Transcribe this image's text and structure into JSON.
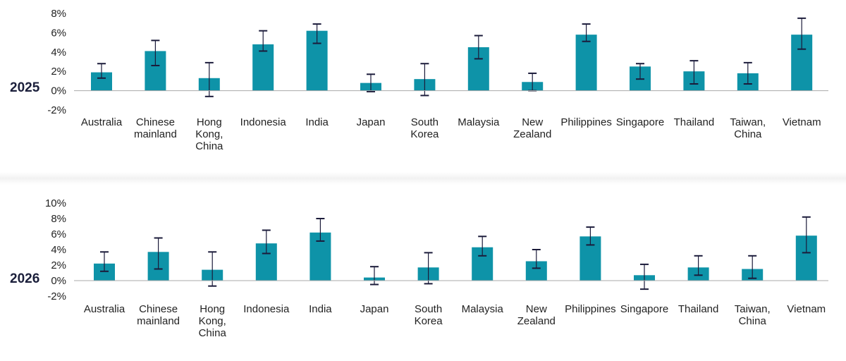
{
  "colors": {
    "bar": "#0e93a8",
    "error_bar": "#1b1b3a",
    "axis": "#aaaaaa",
    "year_label": "#1b1f3b"
  },
  "chart_data": [
    {
      "type": "bar",
      "title": "2025",
      "categories": [
        [
          "Australia"
        ],
        [
          "Chinese",
          "mainland"
        ],
        [
          "Hong",
          "Kong,",
          "China"
        ],
        [
          "Indonesia"
        ],
        [
          "India"
        ],
        [
          "Japan"
        ],
        [
          "South",
          "Korea"
        ],
        [
          "Malaysia"
        ],
        [
          "New",
          "Zealand"
        ],
        [
          "Philippines"
        ],
        [
          "Singapore"
        ],
        [
          "Thailand"
        ],
        [
          "Taiwan,",
          "China"
        ],
        [
          "Vietnam"
        ]
      ],
      "values": [
        1.9,
        4.1,
        1.3,
        4.8,
        6.2,
        0.8,
        1.2,
        4.5,
        0.9,
        5.8,
        2.5,
        2.0,
        1.8,
        5.8
      ],
      "error_low": [
        1.3,
        2.6,
        -0.6,
        4.1,
        4.9,
        -0.1,
        -0.5,
        3.3,
        0.0,
        5.1,
        1.2,
        0.7,
        0.7,
        4.3
      ],
      "error_high": [
        2.8,
        5.2,
        2.9,
        6.2,
        6.9,
        1.7,
        2.8,
        5.7,
        1.8,
        6.9,
        2.8,
        3.1,
        2.9,
        7.5
      ],
      "ylim": [
        -2,
        8
      ],
      "yticks": [
        "-2%",
        "0%",
        "2%",
        "4%",
        "6%",
        "8%"
      ],
      "ytick_values": [
        -2,
        0,
        2,
        4,
        6,
        8
      ],
      "grid": false,
      "legend": "none"
    },
    {
      "type": "bar",
      "title": "2026",
      "categories": [
        [
          "Australia"
        ],
        [
          "Chinese",
          "mainland"
        ],
        [
          "Hong",
          "Kong,",
          "China"
        ],
        [
          "Indonesia"
        ],
        [
          "India"
        ],
        [
          "Japan"
        ],
        [
          "South",
          "Korea"
        ],
        [
          "Malaysia"
        ],
        [
          "New",
          "Zealand"
        ],
        [
          "Philippines"
        ],
        [
          "Singapore"
        ],
        [
          "Thailand"
        ],
        [
          "Taiwan,",
          "China"
        ],
        [
          "Vietnam"
        ]
      ],
      "values": [
        2.2,
        3.7,
        1.4,
        4.8,
        6.2,
        0.4,
        1.7,
        4.3,
        2.5,
        5.7,
        0.7,
        1.7,
        1.5,
        5.8
      ],
      "error_low": [
        1.2,
        1.5,
        -0.7,
        3.5,
        5.1,
        -0.5,
        -0.4,
        3.2,
        1.6,
        4.6,
        -1.1,
        0.7,
        0.3,
        3.6
      ],
      "error_high": [
        3.7,
        5.5,
        3.7,
        6.5,
        8.0,
        1.8,
        3.6,
        5.7,
        4.0,
        6.9,
        2.1,
        3.2,
        3.2,
        8.2
      ],
      "ylim": [
        -2,
        10
      ],
      "yticks": [
        "-2%",
        "0%",
        "2%",
        "4%",
        "6%",
        "8%",
        "10%"
      ],
      "ytick_values": [
        -2,
        0,
        2,
        4,
        6,
        8,
        10
      ],
      "grid": false,
      "legend": "none"
    }
  ]
}
